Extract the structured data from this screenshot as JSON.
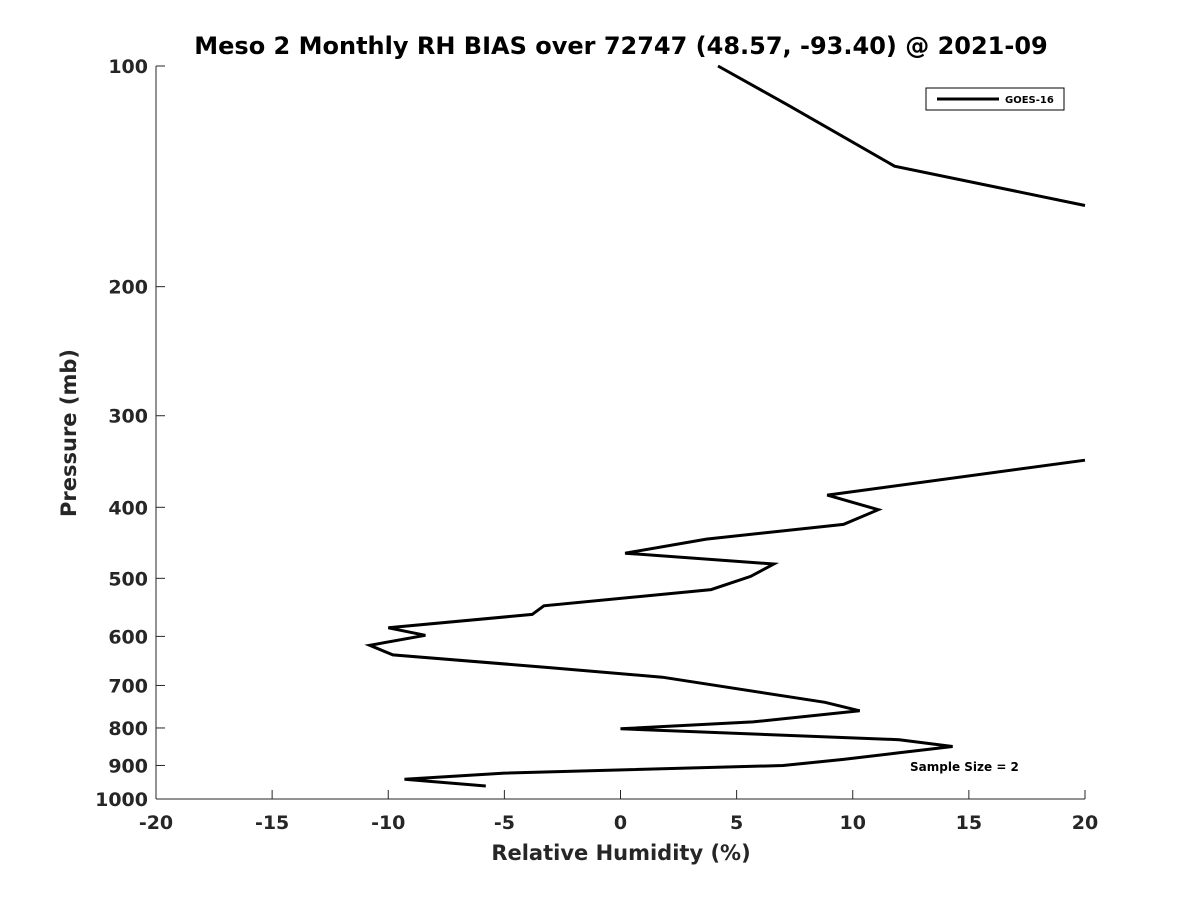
{
  "chart_data": {
    "type": "line",
    "title": "Meso 2 Monthly RH BIAS over 72747 (48.57, -93.40) @ 2021-09",
    "xlabel": "Relative Humidity (%)",
    "ylabel": "Pressure (mb)",
    "xlim": [
      -20,
      20
    ],
    "ylim": [
      100,
      1000
    ],
    "yscale": "log",
    "y_reversed": true,
    "grid": false,
    "x_ticks": [
      -20,
      -15,
      -10,
      -5,
      0,
      5,
      10,
      15,
      20
    ],
    "x_tick_labels": [
      "-20",
      "-15",
      "-10",
      "-5",
      "0",
      "5",
      "10",
      "15",
      "20"
    ],
    "y_ticks": [
      100,
      200,
      300,
      400,
      500,
      600,
      700,
      800,
      900,
      1000
    ],
    "y_tick_labels": [
      "100",
      "200",
      "300",
      "400",
      "500",
      "600",
      "700",
      "800",
      "900",
      "1000"
    ],
    "legend": {
      "placement": "top-right",
      "entries": [
        "GOES-16"
      ]
    },
    "annotation": "Sample Size = 2",
    "series": [
      {
        "name": "GOES-16",
        "color": "#000000",
        "segments": [
          [
            [
              4.2,
              100
            ],
            [
              7.2,
              113
            ],
            [
              11.8,
              137
            ],
            [
              20,
              155
            ]
          ],
          [
            [
              20,
              345
            ],
            [
              8.9,
              385
            ],
            [
              11.1,
              403
            ],
            [
              9.6,
              422
            ],
            [
              3.7,
              442
            ],
            [
              0.2,
              462
            ],
            [
              6.6,
              478
            ],
            [
              5.6,
              497
            ],
            [
              3.9,
              518
            ],
            [
              -3.3,
              545
            ],
            [
              -3.8,
              560
            ],
            [
              -10.0,
              584
            ],
            [
              -8.4,
              598
            ],
            [
              -10.8,
              617
            ],
            [
              -9.8,
              636
            ],
            [
              -3.0,
              662
            ],
            [
              1.8,
              682
            ],
            [
              8.8,
              738
            ],
            [
              10.3,
              758
            ],
            [
              5.7,
              785
            ],
            [
              0.0,
              802
            ],
            [
              12.0,
              830
            ],
            [
              14.3,
              848
            ],
            [
              12.0,
              865
            ],
            [
              9.6,
              883
            ],
            [
              7.0,
              900
            ],
            [
              -5.0,
              922
            ],
            [
              -9.3,
              940
            ],
            [
              -5.8,
              960
            ]
          ]
        ]
      }
    ]
  }
}
